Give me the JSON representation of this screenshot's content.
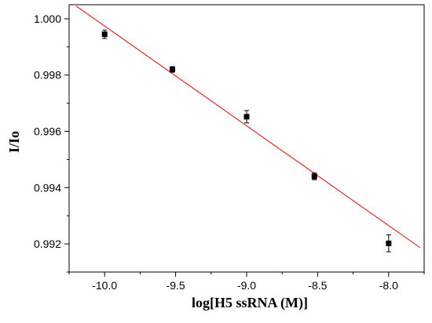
{
  "chart_data": {
    "type": "scatter",
    "xlabel": "log[H5 ssRNA (M)]",
    "ylabel": "I/Io",
    "xlim": [
      -10.25,
      -7.75
    ],
    "ylim": [
      0.991,
      1.0005
    ],
    "x_ticks": [
      -10.0,
      -9.5,
      -9.0,
      -8.5,
      -8.0
    ],
    "x_tick_labels": [
      "-10.0",
      "-9.5",
      "-9.0",
      "-8.5",
      "-8.0"
    ],
    "y_ticks": [
      0.992,
      0.994,
      0.996,
      0.998,
      1.0
    ],
    "y_tick_labels": [
      "0.992",
      "0.994",
      "0.996",
      "0.998",
      "1.000"
    ],
    "grid": false,
    "series": [
      {
        "marker": "square",
        "color": "#000000",
        "points": [
          {
            "x": -10.0,
            "y": 0.99945,
            "err": 0.00015
          },
          {
            "x": -9.523,
            "y": 0.9982,
            "err": 0.0001
          },
          {
            "x": -9.0,
            "y": 0.99652,
            "err": 0.00022
          },
          {
            "x": -8.523,
            "y": 0.9944,
            "err": 0.00012
          },
          {
            "x": -8.0,
            "y": 0.99202,
            "err": 0.0003
          }
        ]
      }
    ],
    "fit_line": {
      "color": "#ff0000",
      "x_start": -10.2,
      "y_start": 1.00045,
      "x_end": -7.78,
      "y_end": 0.99187
    }
  }
}
